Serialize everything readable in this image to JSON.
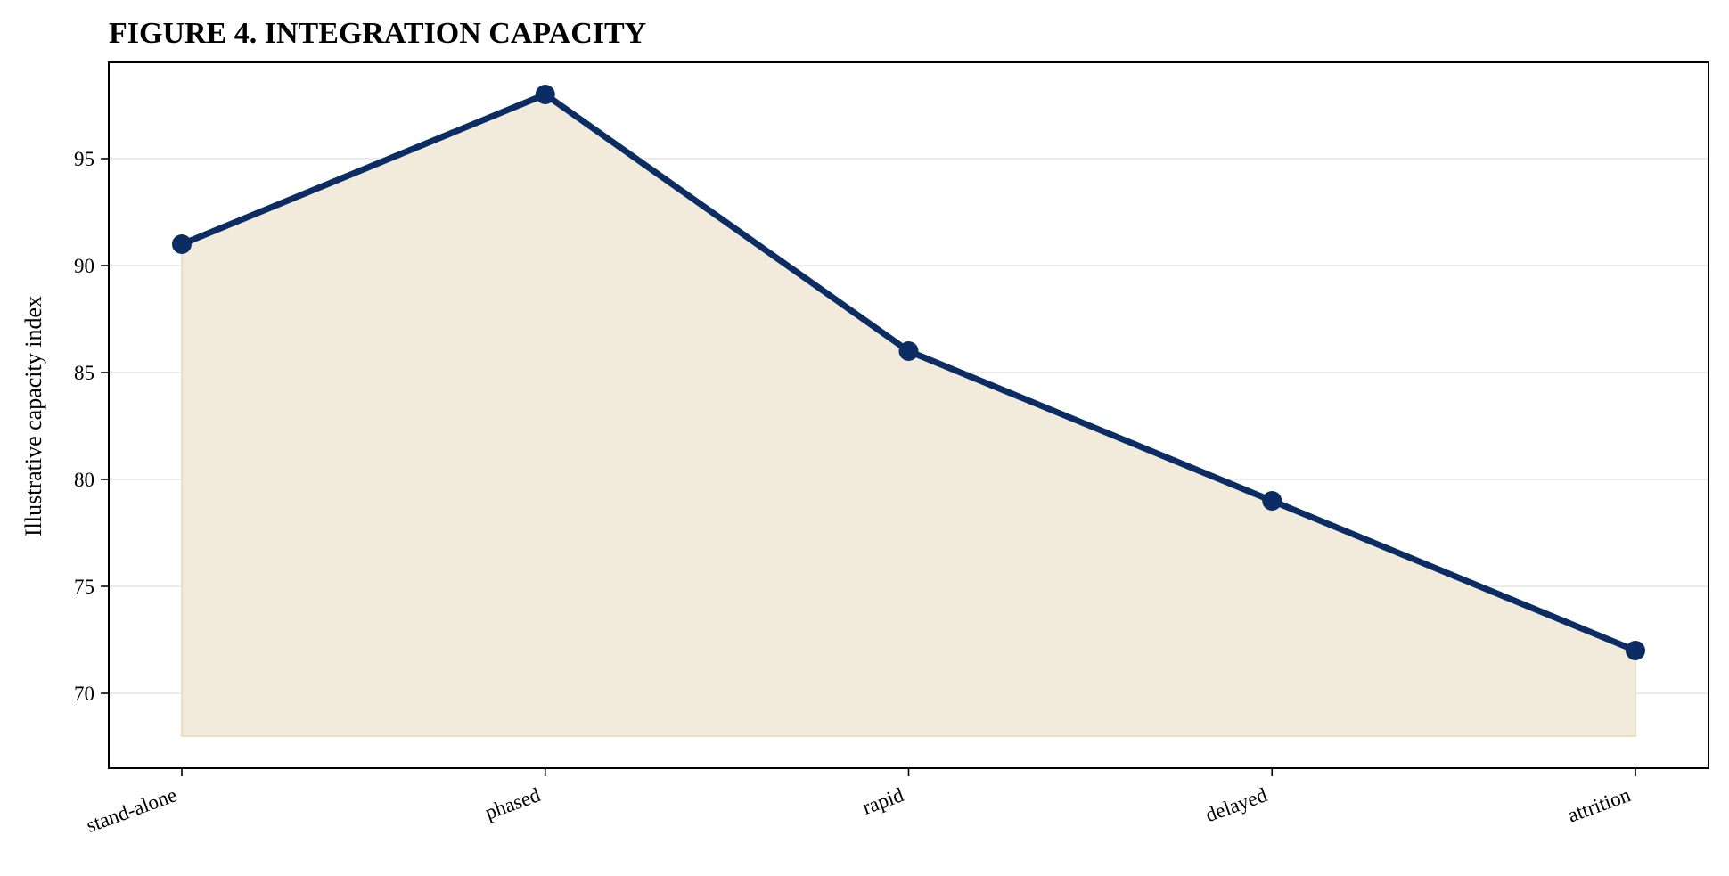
{
  "chart_data": {
    "type": "area",
    "title": "FIGURE 4. INTEGRATION CAPACITY",
    "xlabel": "",
    "ylabel": "Illustrative capacity index",
    "categories": [
      "stand-alone",
      "phased",
      "rapid",
      "delayed",
      "attrition"
    ],
    "series": [
      {
        "values": [
          91,
          98,
          86,
          79,
          72
        ]
      }
    ],
    "area_baseline": 68,
    "ylim": [
      66.5,
      99.5
    ],
    "yticks": [
      70,
      75,
      80,
      85,
      90,
      95
    ],
    "grid": "horizontal",
    "legend": "none",
    "colors": {
      "line": "#0b2d64",
      "marker": "#0b2d64",
      "fill": "#f2ebdc",
      "fill_edge": "#ecdfc4",
      "grid": "#ebebeb",
      "axes": "#000000"
    }
  }
}
